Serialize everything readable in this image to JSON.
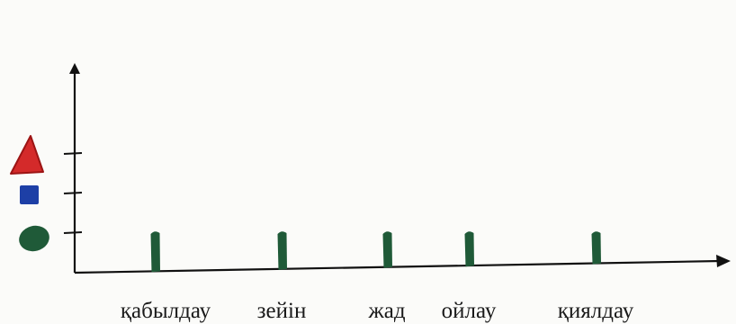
{
  "chart_data": {
    "type": "bar",
    "categories": [
      "қабылдау",
      "зейін",
      "жад",
      "ойлау",
      "қиялдау"
    ],
    "values": [
      1,
      1,
      1,
      1,
      1
    ],
    "y_levels": [
      {
        "level": 1,
        "symbol": "green-circle",
        "color": "#1f5a38"
      },
      {
        "level": 2,
        "symbol": "blue-square",
        "color": "#1d3fa6"
      },
      {
        "level": 3,
        "symbol": "red-triangle",
        "color": "#d42a2a"
      }
    ],
    "ylim": [
      0,
      3.7
    ],
    "bar_color": "#1f5a38",
    "axis_color": "#111111",
    "title": "",
    "xlabel": "",
    "ylabel": ""
  }
}
